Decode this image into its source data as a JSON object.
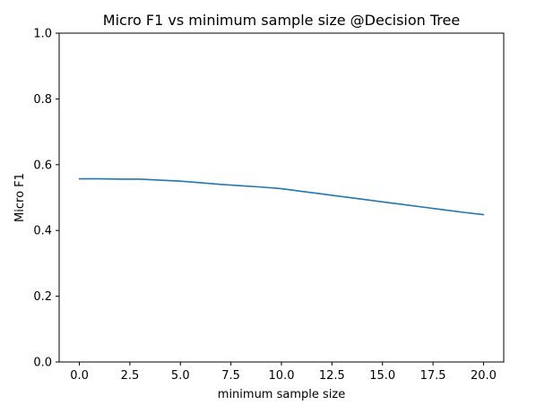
{
  "chart_data": {
    "type": "line",
    "title": "Micro F1 vs minimum sample size @Decision Tree",
    "xlabel": "minimum sample size",
    "ylabel": "Micro F1",
    "xlim": [
      -1.0,
      21.0
    ],
    "ylim": [
      0.0,
      1.0
    ],
    "xticks": [
      0.0,
      2.5,
      5.0,
      7.5,
      10.0,
      12.5,
      15.0,
      17.5,
      20.0
    ],
    "xtick_labels": [
      "0.0",
      "2.5",
      "5.0",
      "7.5",
      "10.0",
      "12.5",
      "15.0",
      "17.5",
      "20.0"
    ],
    "yticks": [
      0.0,
      0.2,
      0.4,
      0.6,
      0.8,
      1.0
    ],
    "ytick_labels": [
      "0.0",
      "0.2",
      "0.4",
      "0.6",
      "0.8",
      "1.0"
    ],
    "grid": false,
    "series": [
      {
        "color": "#1f77b4",
        "x": [
          0,
          1,
          2,
          3,
          4,
          5,
          6,
          7,
          8,
          9,
          10,
          11,
          12,
          13,
          14,
          15,
          16,
          17,
          18,
          19,
          20
        ],
        "y": [
          0.557,
          0.557,
          0.556,
          0.556,
          0.553,
          0.55,
          0.545,
          0.54,
          0.536,
          0.532,
          0.527,
          0.519,
          0.511,
          0.503,
          0.495,
          0.487,
          0.479,
          0.471,
          0.463,
          0.455,
          0.448
        ]
      }
    ]
  }
}
